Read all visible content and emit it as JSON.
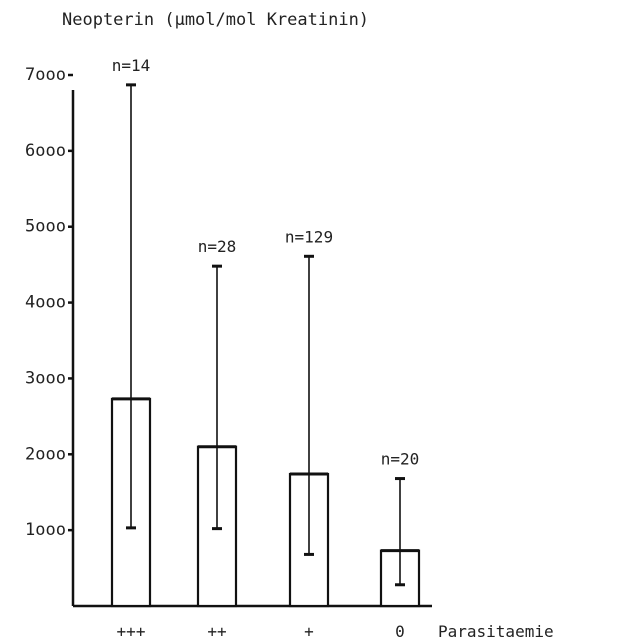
{
  "chart_data": {
    "type": "bar",
    "title": "Neopterin (μmol/mol Kreatinin)",
    "xlabel": "Parasitaemie",
    "ylabel": "",
    "ylim": [
      0,
      7000
    ],
    "yticks": [
      {
        "value": 1000,
        "label": "1ooo"
      },
      {
        "value": 2000,
        "label": "2ooo"
      },
      {
        "value": 3000,
        "label": "3ooo"
      },
      {
        "value": 4000,
        "label": "4ooo"
      },
      {
        "value": 5000,
        "label": "5ooo"
      },
      {
        "value": 6000,
        "label": "6ooo"
      },
      {
        "value": 7000,
        "label": "7ooo"
      }
    ],
    "categories": [
      "+++",
      "++",
      "+",
      "0"
    ],
    "values": [
      2730,
      2100,
      1740,
      730
    ],
    "error_upper": [
      6870,
      4480,
      4610,
      1680
    ],
    "error_lower": [
      1030,
      1020,
      680,
      280
    ],
    "n_labels": [
      "n=14",
      "n=28",
      "n=129",
      "n=20"
    ],
    "grid": false,
    "legend": "none"
  }
}
